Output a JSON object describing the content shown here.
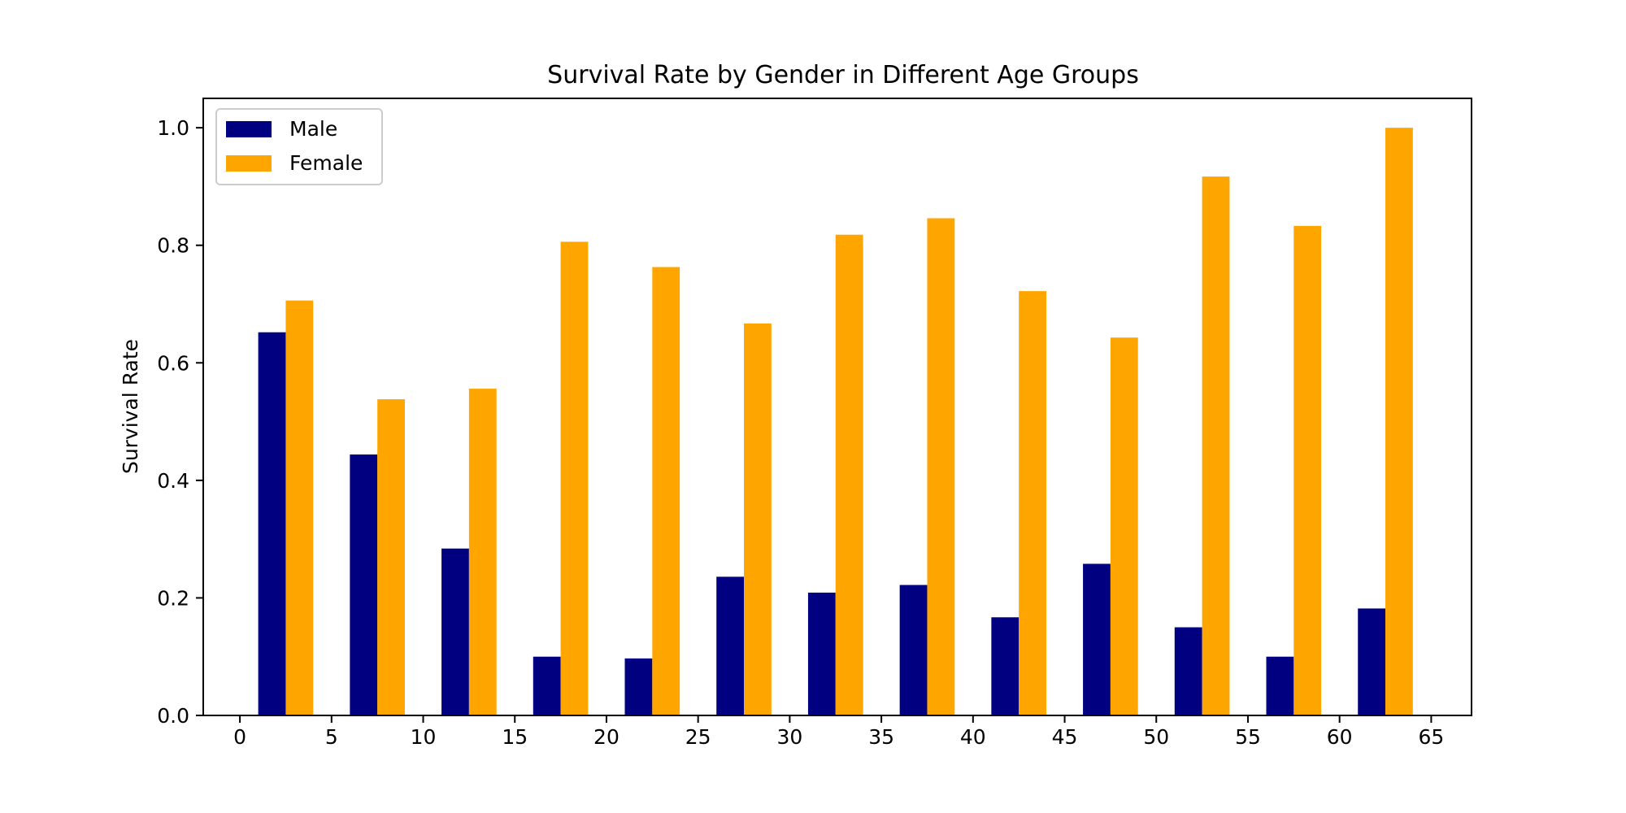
{
  "chart_data": {
    "type": "bar",
    "title": "Survival Rate by Gender in Different Age Groups",
    "xlabel": "",
    "ylabel": "Survival Rate",
    "x": [
      2.5,
      7.5,
      12.5,
      17.5,
      22.5,
      27.5,
      32.5,
      37.5,
      42.5,
      47.5,
      52.5,
      57.5,
      62.5
    ],
    "bar_width": 1.5,
    "xlim": [
      -2,
      67.2
    ],
    "ylim": [
      0,
      1.05
    ],
    "xticks": [
      0,
      5,
      10,
      15,
      20,
      25,
      30,
      35,
      40,
      45,
      50,
      55,
      60,
      65
    ],
    "xtick_labels": [
      "0",
      "5",
      "10",
      "15",
      "20",
      "25",
      "30",
      "35",
      "40",
      "45",
      "50",
      "55",
      "60",
      "65"
    ],
    "yticks": [
      0.0,
      0.2,
      0.4,
      0.6,
      0.8,
      1.0
    ],
    "ytick_labels": [
      "0.0",
      "0.2",
      "0.4",
      "0.6",
      "0.8",
      "1.0"
    ],
    "grid": false,
    "legend_position": "upper-left",
    "series": [
      {
        "name": "Male",
        "color": "#000080",
        "values": [
          0.652,
          0.444,
          0.284,
          0.1,
          0.097,
          0.236,
          0.209,
          0.222,
          0.167,
          0.258,
          0.15,
          0.1,
          0.182
        ]
      },
      {
        "name": "Female",
        "color": "#FFA500",
        "values": [
          0.706,
          0.538,
          0.556,
          0.806,
          0.763,
          0.667,
          0.818,
          0.846,
          0.722,
          0.643,
          0.917,
          0.833,
          1.0
        ]
      }
    ]
  }
}
